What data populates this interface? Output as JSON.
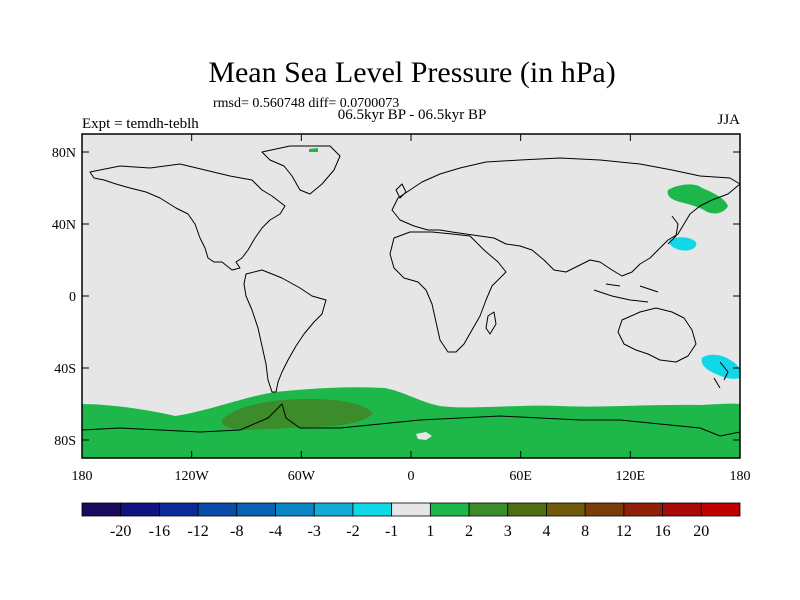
{
  "chart_data": {
    "type": "heatmap",
    "title": "Mean Sea Level Pressure (in hPa)",
    "stats_text": "rmsd= 0.560748 diff= 0.0700073",
    "subtitle": "06.5kyr BP - 06.5kyr BP",
    "left_label": "Expt = temdh-teblh",
    "right_label": "JJA",
    "x_ticks": [
      "180",
      "120W",
      "60W",
      "0",
      "60E",
      "120E",
      "180"
    ],
    "x_tick_values": [
      -180,
      -120,
      -60,
      0,
      60,
      120,
      180
    ],
    "y_ticks": [
      "80N",
      "40N",
      "0",
      "40S",
      "80S"
    ],
    "y_tick_values": [
      80,
      40,
      0,
      -40,
      -80
    ],
    "xlim": [
      -180,
      180
    ],
    "ylim": [
      -90,
      90
    ],
    "colorbar": {
      "labels": [
        "-20",
        "-16",
        "-12",
        "-8",
        "-4",
        "-3",
        "-2",
        "-1",
        "1",
        "2",
        "3",
        "4",
        "8",
        "12",
        "16",
        "20"
      ],
      "colors": [
        "#1a0a5e",
        "#0f1480",
        "#0a2a9a",
        "#0a4aa8",
        "#0a62b4",
        "#0a86c4",
        "#12aad6",
        "#10d8e8",
        "#e6e6e6",
        "#1eb84a",
        "#3c8c2c",
        "#4e6e12",
        "#6e5a0a",
        "#7a3c08",
        "#902008",
        "#a80a0a",
        "#c00000"
      ]
    },
    "background_color": "#e6e6e6",
    "regions": [
      {
        "name": "southern-ocean-band",
        "color": "#1eb84a"
      },
      {
        "name": "antarctic-peninsula-weddell",
        "color": "#3c8c2c"
      },
      {
        "name": "greenland-spot",
        "color": "#1eb84a"
      },
      {
        "name": "kamchatka-okhotsk",
        "color": "#1eb84a"
      },
      {
        "name": "north-pacific-west",
        "color": "#10d8e8"
      },
      {
        "name": "new-zealand",
        "color": "#10d8e8"
      },
      {
        "name": "antarctic-small",
        "color": "#e6e6e6"
      }
    ]
  }
}
